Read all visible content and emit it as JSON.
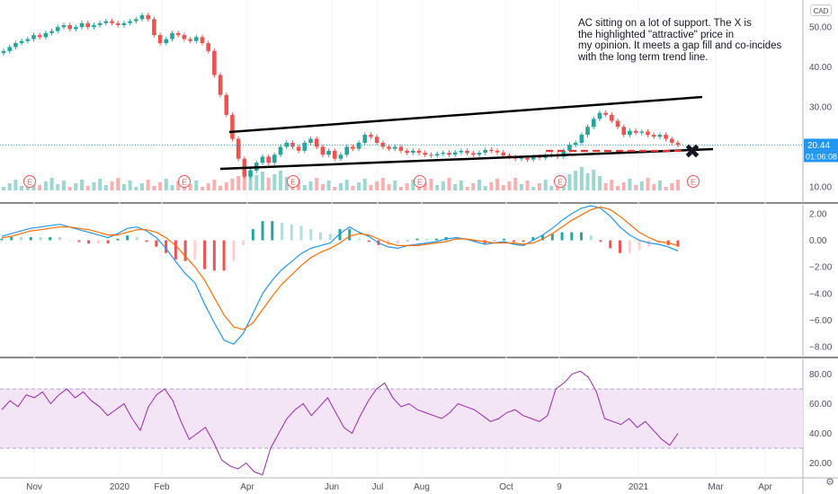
{
  "chart_data": [
    {
      "type": "candlestick",
      "symbol": "AC",
      "currency": "CAD",
      "y_ticks": [
        10,
        20,
        30,
        40,
        50
      ],
      "y_tick_labels": [
        "10.00",
        "20.00",
        "30.00",
        "40.00",
        "50.00"
      ],
      "ylim": [
        5,
        55
      ],
      "last_price": "20.44",
      "countdown": "01:06:08",
      "x_tick_labels": [
        "Nov",
        "2020",
        "Feb",
        "Apr",
        "Jun",
        "Jul",
        "Aug",
        "Oct",
        "9",
        "2021",
        "Mar",
        "Apr"
      ],
      "earnings_markers": [
        "E",
        "E",
        "E",
        "E",
        "E",
        "E"
      ],
      "close_series": [
        44,
        45,
        46,
        46.5,
        47,
        48,
        47.5,
        48.5,
        49,
        50,
        50.5,
        49.5,
        50,
        51,
        50,
        50.5,
        51,
        51.5,
        51,
        50.5,
        51,
        51.5,
        52,
        53,
        52,
        48,
        46,
        47,
        48.5,
        48,
        47,
        46.5,
        47.5,
        46,
        44,
        38,
        33,
        28,
        22,
        17,
        12.5,
        14,
        16,
        17.5,
        16,
        18,
        20,
        21,
        20,
        19,
        21,
        22,
        20,
        18,
        19,
        17,
        18,
        20,
        19.5,
        21,
        23,
        22.5,
        21,
        20,
        19.5,
        20,
        19,
        18.5,
        19,
        18.5,
        18,
        17.8,
        18.2,
        18.5,
        18,
        18.6,
        19,
        18.4,
        18,
        18.5,
        19.2,
        19,
        18.6,
        17.8,
        17.5,
        17,
        17.2,
        16.8,
        17.5,
        17.2,
        17.9,
        18,
        17.5,
        19,
        20.5,
        21,
        23,
        25,
        27,
        28.5,
        28,
        26.5,
        25,
        23,
        24,
        23.5,
        23.8,
        23,
        22.5,
        23,
        22,
        21,
        20.44
      ],
      "annotations": {
        "note": "AC sitting on a lot of support. The X is\nthe highlighted \"attractive\" price in\nmy opinion. It meets a gap fill and co-incides\nwith the long term trend line.",
        "marker": "✖"
      }
    },
    {
      "type": "histogram+line",
      "indicator": "MACD",
      "y_ticks": [
        2,
        0,
        -2,
        -4,
        -6,
        -8
      ],
      "y_tick_labels": [
        "2.00",
        "0.00",
        "−2.00",
        "−4.00",
        "−6.00",
        "−8.00"
      ],
      "ylim": [
        -8.8,
        2.8
      ],
      "macd": [
        0.3,
        0.5,
        0.7,
        0.9,
        1.0,
        1.1,
        1.2,
        1.0,
        0.8,
        0.6,
        0.4,
        0.2,
        0.5,
        0.9,
        1.0,
        0.7,
        0.2,
        -0.6,
        -1.6,
        -2.5,
        -3.2,
        -4.8,
        -6.2,
        -7.5,
        -7.8,
        -7.0,
        -5.5,
        -4.0,
        -3.0,
        -2.2,
        -1.6,
        -1.0,
        -0.6,
        -0.4,
        -0.2,
        0.5,
        1.0,
        0.6,
        0.3,
        -0.2,
        -0.5,
        -0.6,
        -0.4,
        -0.3,
        -0.2,
        -0.1,
        0.1,
        0.2,
        0.1,
        -0.1,
        -0.3,
        -0.2,
        -0.1,
        -0.3,
        -0.4,
        0.0,
        0.4,
        0.9,
        1.5,
        2.0,
        2.4,
        2.6,
        2.4,
        1.8,
        1.0,
        0.4,
        0.0,
        -0.2,
        -0.3,
        -0.5,
        -0.8
      ],
      "signal": [
        0.2,
        0.3,
        0.5,
        0.7,
        0.8,
        0.9,
        1.0,
        1.0,
        0.9,
        0.8,
        0.6,
        0.4,
        0.4,
        0.6,
        0.8,
        0.8,
        0.6,
        0.2,
        -0.4,
        -1.2,
        -2.0,
        -3.0,
        -4.3,
        -5.6,
        -6.5,
        -6.7,
        -6.2,
        -5.2,
        -4.2,
        -3.3,
        -2.6,
        -1.9,
        -1.3,
        -0.9,
        -0.6,
        -0.2,
        0.3,
        0.5,
        0.4,
        0.1,
        -0.2,
        -0.4,
        -0.4,
        -0.4,
        -0.3,
        -0.2,
        -0.1,
        0.1,
        0.1,
        0.0,
        -0.1,
        -0.2,
        -0.2,
        -0.2,
        -0.3,
        -0.2,
        0.1,
        0.5,
        1.0,
        1.5,
        1.9,
        2.3,
        2.5,
        2.3,
        1.8,
        1.2,
        0.6,
        0.2,
        -0.1,
        -0.2,
        -0.4
      ]
    },
    {
      "type": "line",
      "indicator": "RSI",
      "y_ticks": [
        20,
        40,
        60,
        80
      ],
      "y_tick_labels": [
        "20.00",
        "40.00",
        "60.00",
        "80.00"
      ],
      "ylim": [
        10,
        90
      ],
      "band": [
        30,
        70
      ],
      "rsi": [
        56,
        62,
        58,
        66,
        64,
        68,
        60,
        66,
        70,
        64,
        68,
        62,
        58,
        52,
        56,
        60,
        50,
        42,
        58,
        66,
        70,
        62,
        48,
        36,
        40,
        44,
        34,
        22,
        18,
        16,
        20,
        14,
        12,
        30,
        40,
        50,
        56,
        60,
        52,
        58,
        64,
        54,
        44,
        40,
        52,
        62,
        70,
        74,
        64,
        58,
        60,
        56,
        54,
        52,
        50,
        54,
        60,
        58,
        56,
        52,
        48,
        50,
        54,
        56,
        52,
        50,
        48,
        52,
        70,
        74,
        80,
        82,
        78,
        68,
        50,
        48,
        46,
        50,
        44,
        48,
        42,
        36,
        32,
        40
      ]
    }
  ],
  "colors": {
    "up": "#26a69a",
    "down": "#ef5350",
    "macd": "#2196f3",
    "signal": "#ff6d00",
    "rsi": "#9c27b0",
    "rsi_band": "#f3e5f5",
    "trendline": "#000000",
    "support": "#e53935",
    "last_price": "#2196f3"
  }
}
